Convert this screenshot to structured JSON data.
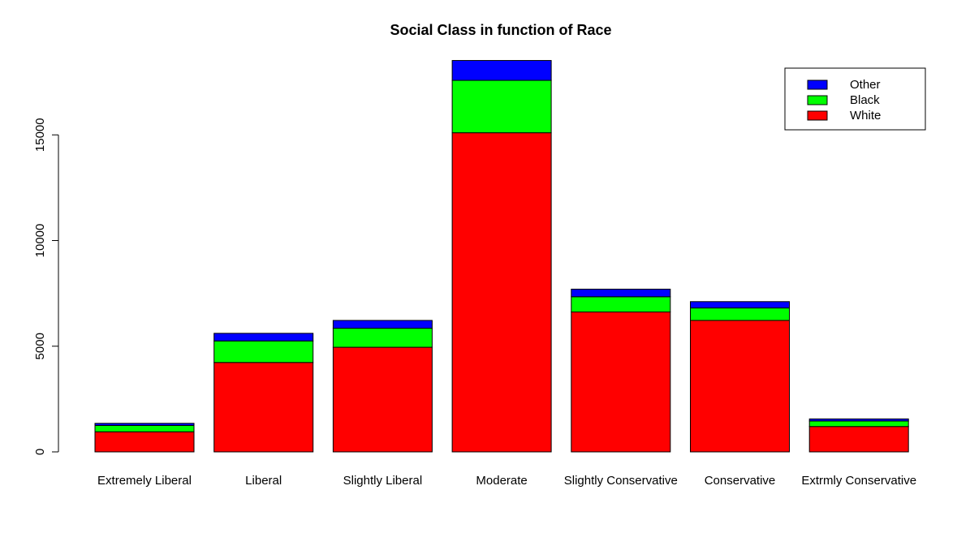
{
  "chart_data": {
    "type": "bar",
    "stacked": true,
    "title": "Social Class in function of Race",
    "xlabel": "",
    "ylabel": "",
    "categories": [
      "Extremely Liberal",
      "Liberal",
      "Slightly Liberal",
      "Moderate",
      "Slightly Conservative",
      "Conservative",
      "Extrmly Conservative"
    ],
    "series": [
      {
        "name": "White",
        "color": "#ff0000",
        "values": [
          950,
          4230,
          4950,
          15100,
          6620,
          6220,
          1200
        ]
      },
      {
        "name": "Black",
        "color": "#00ff00",
        "values": [
          300,
          1020,
          900,
          2480,
          720,
          590,
          260
        ]
      },
      {
        "name": "Other",
        "color": "#0000ff",
        "values": [
          100,
          360,
          370,
          940,
          360,
          300,
          100
        ]
      }
    ],
    "yticks": [
      0,
      5000,
      10000,
      15000
    ],
    "ylim": [
      0,
      18530
    ],
    "grid": false,
    "legend": {
      "position": "top-right",
      "order": [
        "Other",
        "Black",
        "White"
      ]
    }
  }
}
